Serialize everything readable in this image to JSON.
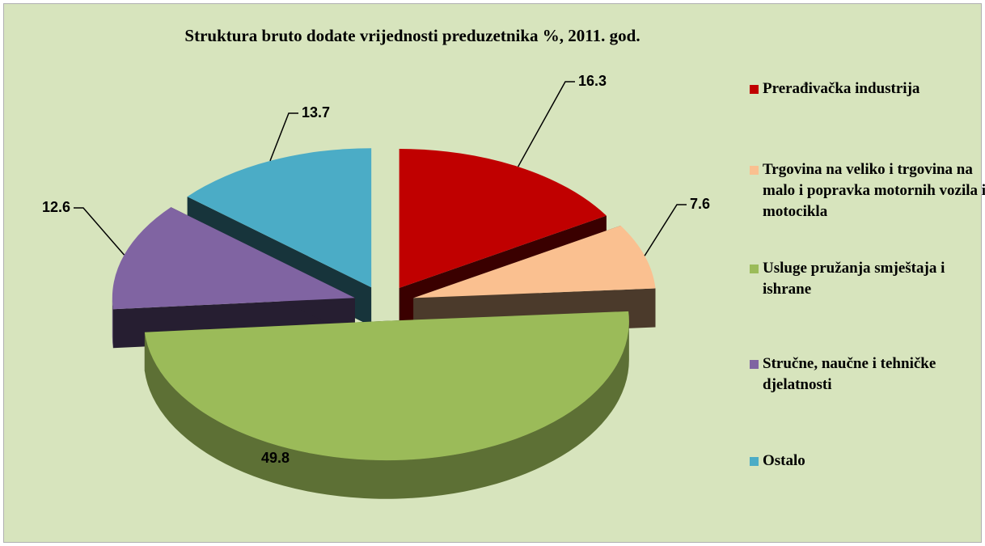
{
  "chart_data": {
    "type": "pie",
    "title": "Struktura bruto dodate vrijednosti preduzetnika  %, 2011. god.",
    "categories": [
      "Prerađivačka industrija",
      "Trgovina na veliko i trgovina na malo i popravka motornih vozila i motocikla",
      "Usluge pružanja smještaja i ishrane",
      "Stručne, naučne i tehničke djelatnosti",
      "Ostalo"
    ],
    "values": [
      16.3,
      7.6,
      49.8,
      12.6,
      13.7
    ],
    "colors": [
      "#c00000",
      "#fac090",
      "#9bbb59",
      "#8064a2",
      "#4bacc6"
    ],
    "legend": "right"
  }
}
